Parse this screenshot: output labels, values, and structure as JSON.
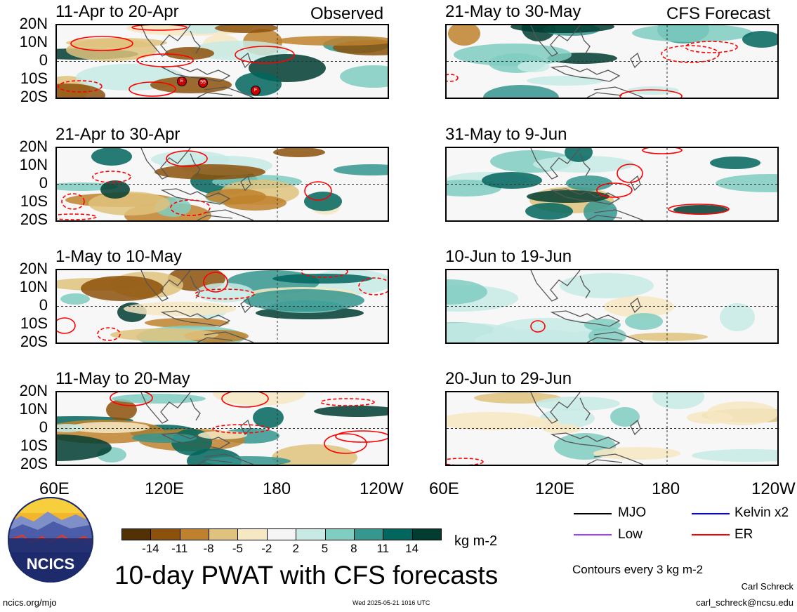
{
  "observed_label": "Observed",
  "forecast_label": "CFS Forecast",
  "lat_labels": [
    "20N",
    "10N",
    "0",
    "10S",
    "20S"
  ],
  "lon_labels": [
    "60E",
    "120E",
    "180",
    "120W"
  ],
  "observed_panels": [
    {
      "title": "11-Apr to 20-Apr"
    },
    {
      "title": "21-Apr to 30-Apr"
    },
    {
      "title": "1-May to 10-May"
    },
    {
      "title": "11-May to 20-May"
    }
  ],
  "forecast_panels": [
    {
      "title": "21-May to 30-May"
    },
    {
      "title": "31-May to 9-Jun"
    },
    {
      "title": "10-Jun to 19-Jun"
    },
    {
      "title": "20-Jun to 29-Jun"
    }
  ],
  "colorbar": {
    "tick_labels": [
      "-14",
      "-11",
      "-8",
      "-5",
      "-2",
      "2",
      "5",
      "8",
      "11",
      "14"
    ],
    "colors": [
      "#543005",
      "#8c510a",
      "#bf812d",
      "#dfc27d",
      "#f6e8c3",
      "#f5f5f5",
      "#c7eae5",
      "#80cdc1",
      "#35978f",
      "#01665e",
      "#003c30"
    ],
    "units": "kg m-2"
  },
  "main_title": "10-day PWAT with CFS forecasts",
  "legend": [
    {
      "label": "MJO",
      "color": "#000000"
    },
    {
      "label": "Kelvin x2",
      "color": "#0000ff"
    },
    {
      "label": "Low",
      "color": "#a040ff"
    },
    {
      "label": "ER",
      "color": "#ff0000"
    }
  ],
  "contour_note": "Contours every 3 kg m-2",
  "author": "Carl Schreck",
  "email": "carl_schreck@ncsu.edu",
  "site": "ncics.org/mjo",
  "timestamp": "Wed 2025-05-21 1016 UTC",
  "logo_text": "NCICS",
  "tc_markers": [
    "E",
    "99",
    "F"
  ],
  "chart_data": {
    "type": "heatmap",
    "title": "10-day PWAT with CFS forecasts",
    "xlabel": "",
    "ylabel": "",
    "x_ticks": [
      "60E",
      "120E",
      "180",
      "120W"
    ],
    "y_ticks": [
      "20N",
      "10N",
      "0",
      "10S",
      "20S"
    ],
    "xlim": [
      "60E",
      "120W"
    ],
    "ylim": [
      "20S",
      "20N"
    ],
    "color_levels": [
      -14,
      -11,
      -8,
      -5,
      -2,
      2,
      5,
      8,
      11,
      14
    ],
    "units": "kg m-2",
    "contour_interval": 3,
    "series": [
      {
        "name": "MJO",
        "color": "#000000"
      },
      {
        "name": "Kelvin x2",
        "color": "#0000ff"
      },
      {
        "name": "Low",
        "color": "#a040ff"
      },
      {
        "name": "ER",
        "color": "#ff0000"
      }
    ],
    "panels": [
      "11-Apr to 20-Apr",
      "21-Apr to 30-Apr",
      "1-May to 10-May",
      "11-May to 20-May",
      "21-May to 30-May",
      "31-May to 9-Jun",
      "10-Jun to 19-Jun",
      "20-Jun to 29-Jun"
    ]
  }
}
